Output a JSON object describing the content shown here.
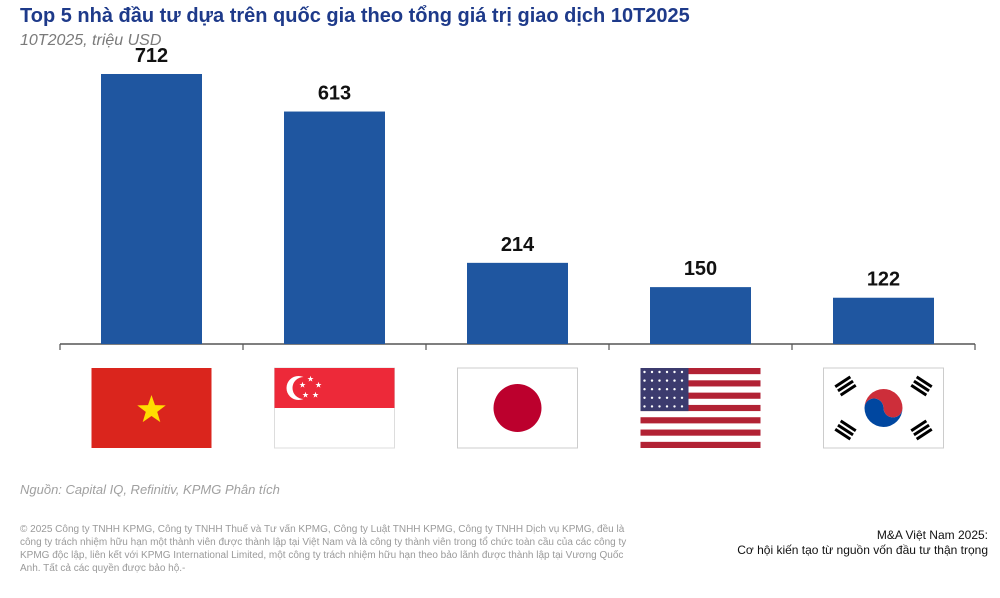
{
  "header": {
    "title": "Top 5 nhà đầu tư dựa trên quốc gia theo tổng giá trị giao dịch 10T2025",
    "subtitle": "10T2025, triệu USD"
  },
  "chart_data": {
    "type": "bar",
    "categories": [
      "Việt Nam",
      "Singapore",
      "Nhật Bản",
      "Hoa Kỳ",
      "Hàn Quốc"
    ],
    "values": [
      712,
      613,
      214,
      150,
      122
    ],
    "ylim": [
      0,
      770
    ],
    "grid": false,
    "bar_color": "#1f56a0",
    "category_display": "flag-icons"
  },
  "source": "Nguồn: Capital IQ, Refinitiv, KPMG Phân tích",
  "footer": {
    "copyright": "© 2025 Công ty TNHH KPMG, Công ty TNHH Thuế và Tư vấn KPMG, Công ty Luật TNHH KPMG, Công ty TNHH Dịch vụ KPMG, đều là công ty trách nhiệm hữu hạn một thành viên được thành lập tại Việt Nam và là công ty thành viên trong tổ chức toàn cầu của các công ty KPMG độc lập, liên kết với KPMG International Limited, một công ty trách nhiệm hữu hạn theo bảo lãnh được thành lập tại Vương Quốc Anh. Tất cả các quyền được bảo hộ.-",
    "report_title_line1": "M&A Việt Nam 2025:",
    "report_title_line2": "Cơ hội kiến tạo từ nguồn vốn đầu tư thận trọng"
  },
  "flags": [
    {
      "icon": "vietnam-flag-icon",
      "colors": {
        "red": "#da251d",
        "yellow": "#ffdd00"
      }
    },
    {
      "icon": "singapore-flag-icon",
      "colors": {
        "red": "#ed2939",
        "white": "#ffffff"
      }
    },
    {
      "icon": "japan-flag-icon",
      "colors": {
        "red": "#bc002d",
        "white": "#ffffff"
      }
    },
    {
      "icon": "usa-flag-icon",
      "colors": {
        "red": "#b22234",
        "white": "#ffffff",
        "blue": "#3c3b6e"
      }
    },
    {
      "icon": "korea-flag-icon",
      "colors": {
        "red": "#cd2e3a",
        "blue": "#0047a0",
        "black": "#000000",
        "white": "#ffffff"
      }
    }
  ]
}
